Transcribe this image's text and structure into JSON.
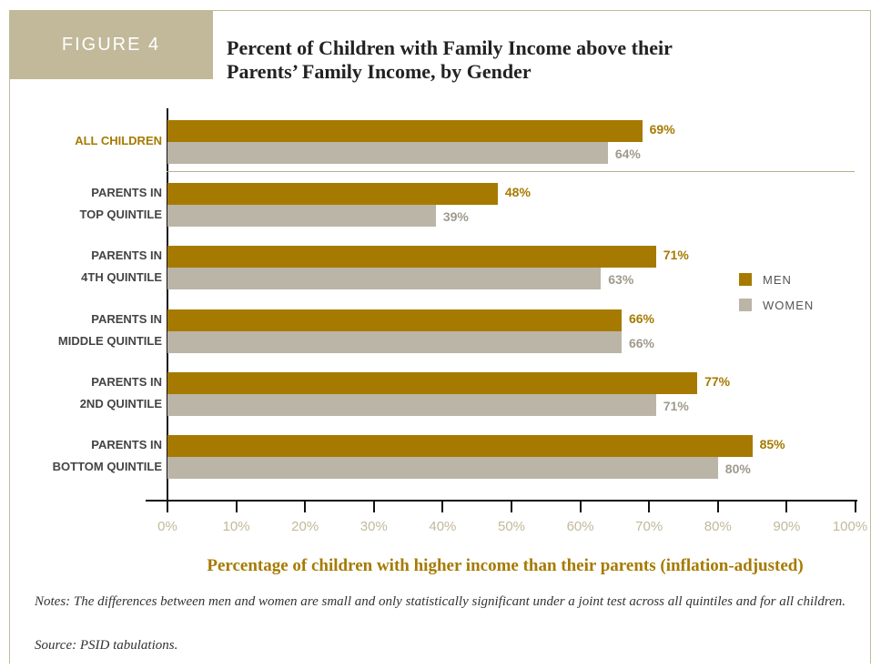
{
  "figure_label": "FIGURE 4",
  "title_line1": "Percent of Children with Family Income above their",
  "title_line2": "Parents’ Family Income, by Gender",
  "notes": "Notes: The differences between men and women are small and only statistically significant under a joint test across all quintiles and for all children.",
  "source": "Source: PSID tabulations.",
  "colors": {
    "men": "#a67a00",
    "women": "#bbb5a8",
    "accent": "#c2b99a"
  },
  "chart_data": {
    "type": "bar",
    "orientation": "horizontal",
    "categories": [
      [
        "ALL CHILDREN"
      ],
      [
        "PARENTS IN",
        "TOP QUINTILE"
      ],
      [
        "PARENTS IN",
        "4TH QUINTILE"
      ],
      [
        "PARENTS IN",
        "MIDDLE QUINTILE"
      ],
      [
        "PARENTS IN",
        "2ND QUINTILE"
      ],
      [
        "PARENTS IN",
        "BOTTOM QUINTILE"
      ]
    ],
    "series": [
      {
        "name": "MEN",
        "values": [
          69,
          48,
          71,
          66,
          77,
          85
        ],
        "labels": [
          "69%",
          "48%",
          "71%",
          "66%",
          "77%",
          "85%"
        ]
      },
      {
        "name": "WOMEN",
        "values": [
          64,
          39,
          63,
          66,
          71,
          80
        ],
        "labels": [
          "64%",
          "39%",
          "63%",
          "66%",
          "71%",
          "80%"
        ]
      }
    ],
    "xlabel": "Percentage of children with higher income than their parents (inflation-adjusted)",
    "ylabel": "",
    "xlim": [
      0,
      100
    ],
    "xticks": [
      "0%",
      "10%",
      "20%",
      "30%",
      "40%",
      "50%",
      "60%",
      "70%",
      "80%",
      "90%",
      "100%"
    ],
    "legend": [
      "MEN",
      "WOMEN"
    ],
    "legend_position": "right",
    "grid": false
  }
}
